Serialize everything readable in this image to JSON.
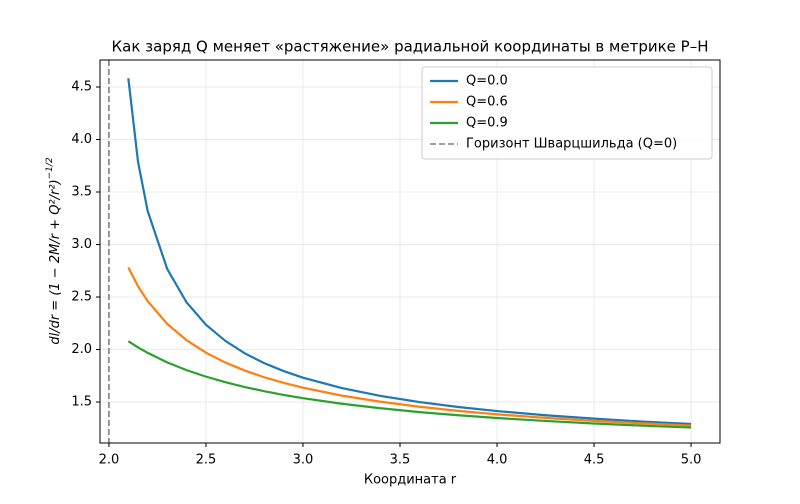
{
  "chart_data": {
    "type": "line",
    "title": "Как заряд Q меняет «растяжение» радиальной координаты в метрике Р–Н",
    "xlabel": "Координата r",
    "ylabel": {
      "base": "dl/dr = (1 − 2M/r + Q²/r²)",
      "exponent": "−1/2"
    },
    "x": [
      2.1,
      2.15,
      2.2,
      2.3,
      2.4,
      2.5,
      2.6,
      2.7,
      2.8,
      2.9,
      3.0,
      3.2,
      3.4,
      3.6,
      3.8,
      4.0,
      4.25,
      4.5,
      4.75,
      5.0
    ],
    "series": [
      {
        "name": "Q=0.0",
        "color": "#1f77b4",
        "values": [
          4.583,
          3.786,
          3.317,
          2.769,
          2.449,
          2.236,
          2.082,
          1.964,
          1.871,
          1.795,
          1.732,
          1.633,
          1.558,
          1.5,
          1.453,
          1.414,
          1.374,
          1.342,
          1.314,
          1.291
        ]
      },
      {
        "name": "Q=0.6",
        "color": "#ff7f0e",
        "values": [
          2.782,
          2.602,
          2.46,
          2.245,
          2.089,
          1.97,
          1.876,
          1.8,
          1.736,
          1.683,
          1.637,
          1.561,
          1.503,
          1.455,
          1.416,
          1.383,
          1.349,
          1.321,
          1.297,
          1.276
        ]
      },
      {
        "name": "Q=0.9",
        "color": "#2ca02c",
        "values": [
          2.079,
          2.02,
          1.968,
          1.878,
          1.804,
          1.742,
          1.689,
          1.643,
          1.603,
          1.568,
          1.537,
          1.484,
          1.441,
          1.404,
          1.374,
          1.348,
          1.32,
          1.296,
          1.275,
          1.257
        ]
      }
    ],
    "vlines": [
      {
        "name": "Горизонт Шварцшильда (Q=0)",
        "x": 2,
        "color": "#808080"
      }
    ],
    "xlim": [
      1.954,
      5.149
    ],
    "ylim": [
      1.11,
      4.757
    ],
    "xticks": [
      {
        "value": 2,
        "label": "2.0"
      },
      2.5,
      {
        "value": 3,
        "label": "3.0"
      },
      3.5,
      {
        "value": 4,
        "label": "4.0"
      },
      4.5,
      {
        "value": 5,
        "label": "5.0"
      }
    ],
    "yticks": [
      1.5,
      {
        "value": 2,
        "label": "2.0"
      },
      2.5,
      {
        "value": 3,
        "label": "3.0"
      },
      3.5,
      {
        "value": 4,
        "label": "4.0"
      },
      4.5
    ],
    "grid": true,
    "legend": "upper right"
  }
}
